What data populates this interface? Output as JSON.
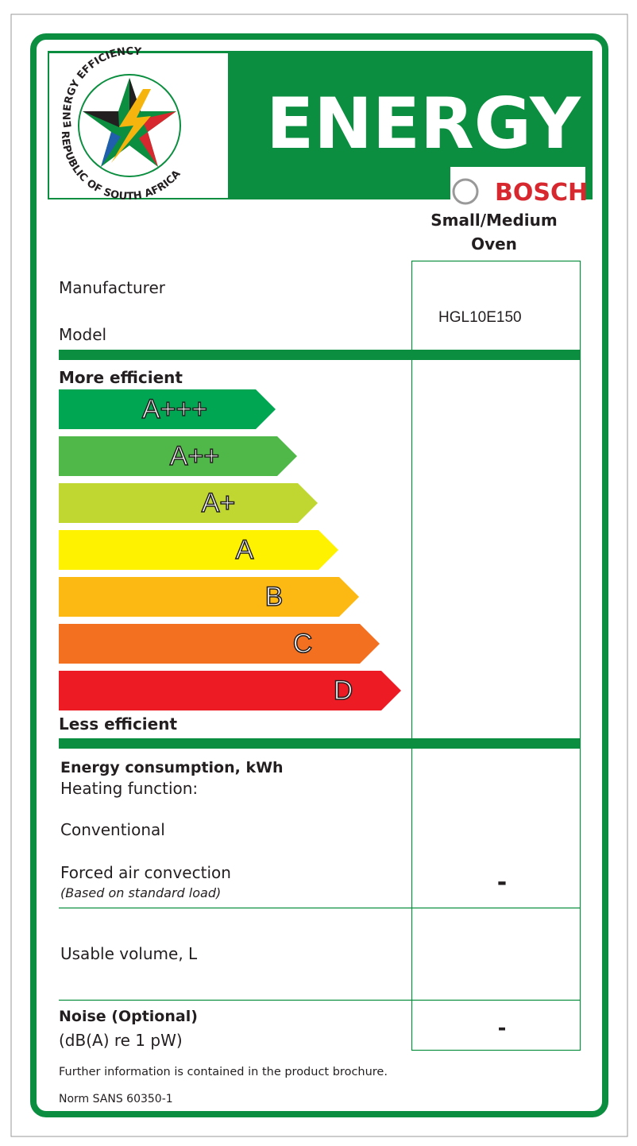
{
  "logo": {
    "top_text": "ENERGY EFFICIENCY",
    "bottom_text": "REPUBLIC OF SOUTH AFRICA"
  },
  "header": {
    "title": "ENERGY",
    "brand": "BOSCH"
  },
  "product": {
    "type_line1": "Small/Medium",
    "type_line2": "Oven"
  },
  "fields": {
    "manufacturer": "Manufacturer",
    "model": "Model",
    "model_value": "HGL10E150"
  },
  "scale": {
    "top": "More efficient",
    "bottom": "Less efficient",
    "classes": [
      {
        "label": "A+++",
        "color": "#00a651"
      },
      {
        "label": "A++",
        "color": "#50b848"
      },
      {
        "label": "A+",
        "color": "#bfd730"
      },
      {
        "label": "A",
        "color": "#fff200"
      },
      {
        "label": "B",
        "color": "#fdb913"
      },
      {
        "label": "C",
        "color": "#f37021"
      },
      {
        "label": "D",
        "color": "#ed1c24"
      }
    ]
  },
  "consumption": {
    "heading": "Energy consumption, kWh",
    "function": "Heating function:",
    "conventional": "Conventional",
    "forced": "Forced air convection",
    "note": "(Based on standard load)",
    "value": "-"
  },
  "volume": {
    "label": "Usable volume, L"
  },
  "noise": {
    "heading": "Noise (Optional)",
    "unit": "(dB(A) re 1 pW)",
    "value": "-"
  },
  "footer": {
    "info": "Further information is contained in the product brochure.",
    "norm": "Norm SANS 60350-1"
  }
}
